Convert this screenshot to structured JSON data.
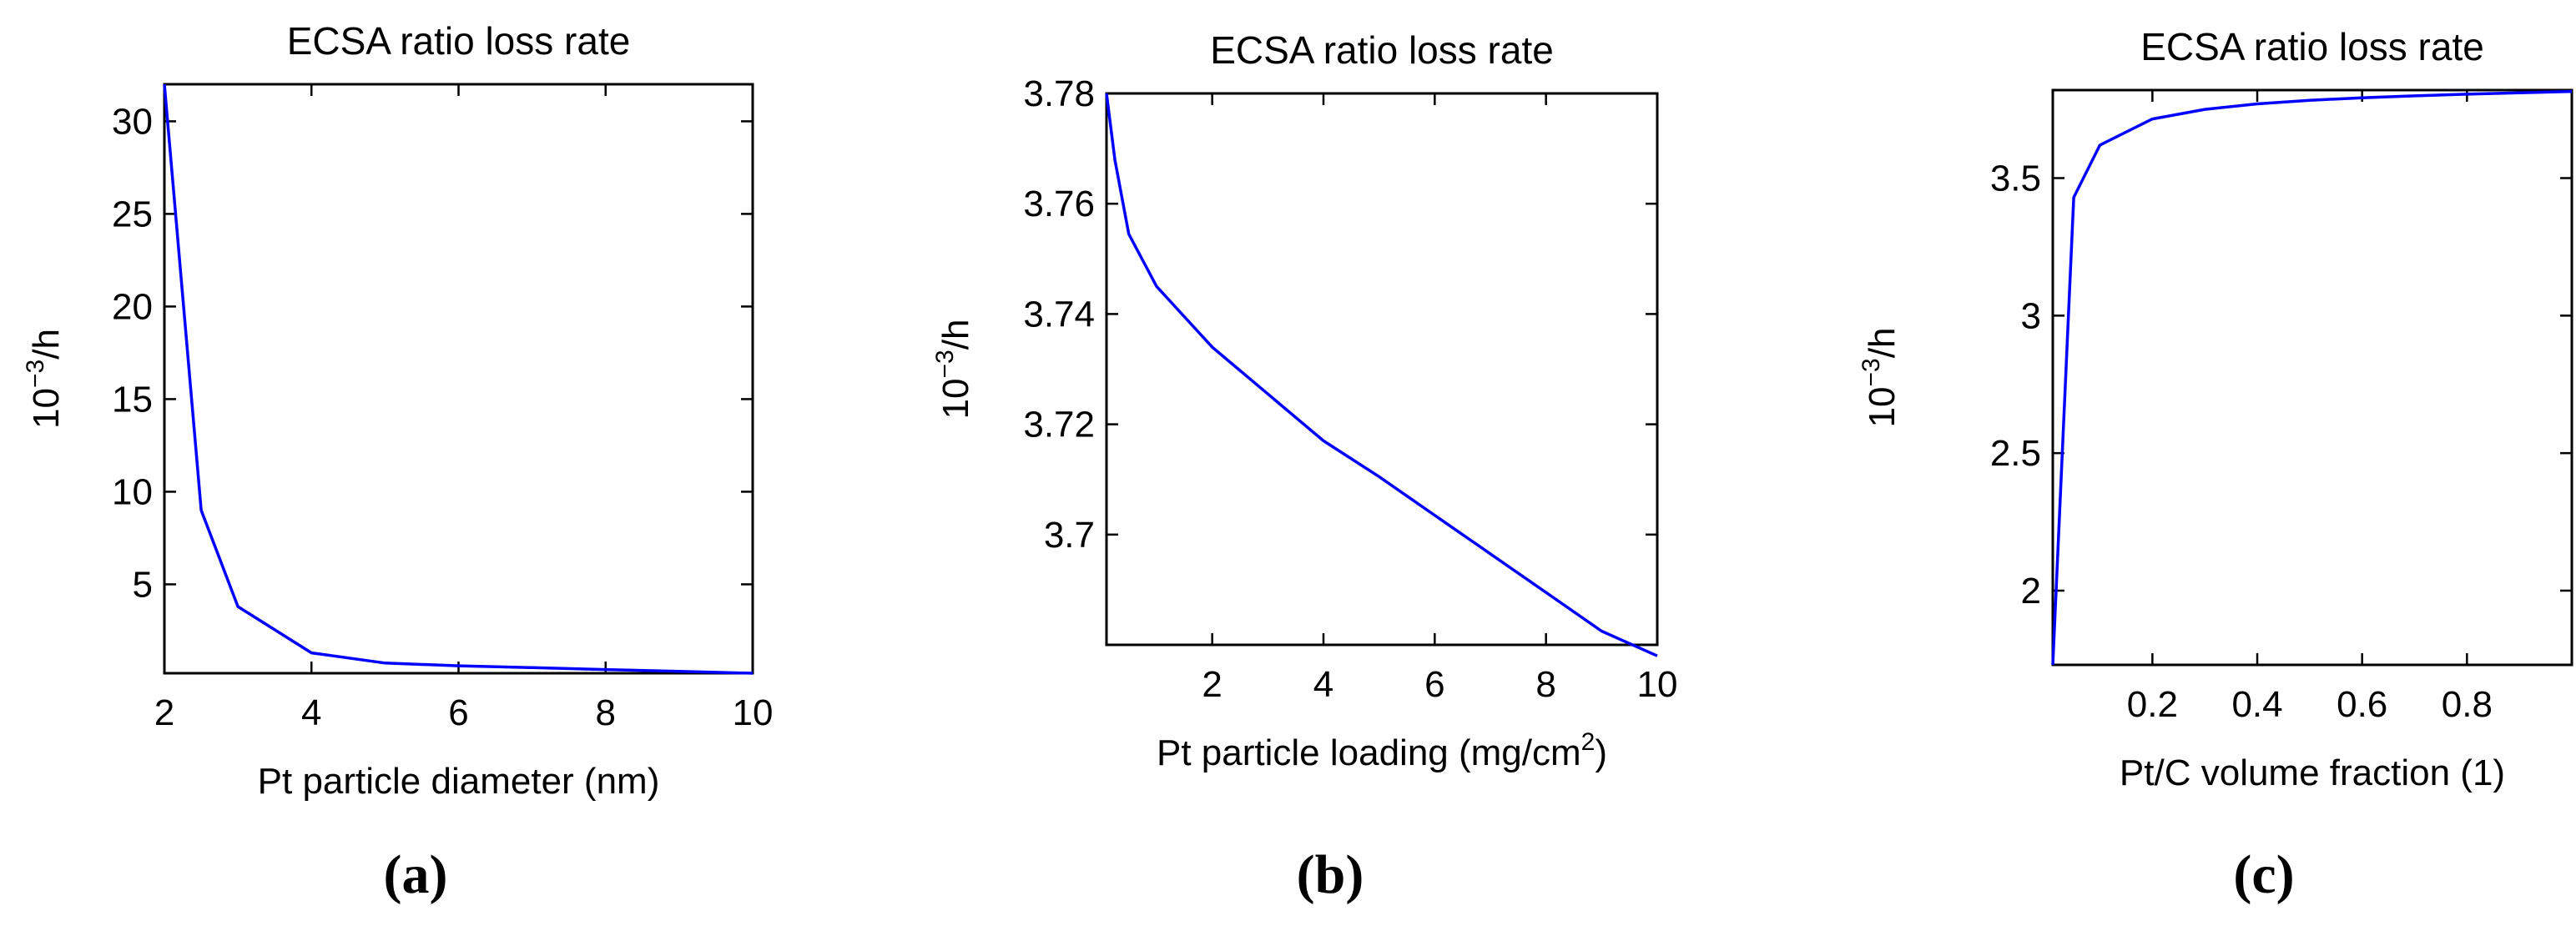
{
  "chart_data": [
    {
      "type": "line",
      "panel": "(a)",
      "title": "ECSA ratio loss rate",
      "xlabel": "Pt particle diameter (nm)",
      "ylabel": {
        "base": "10",
        "exp": "−3",
        "rest": "/h"
      },
      "xlim": [
        2,
        10
      ],
      "ylim": [
        0.2,
        32
      ],
      "xticks": [
        2,
        4,
        6,
        8,
        10
      ],
      "yticks": [
        5,
        10,
        15,
        20,
        25,
        30
      ],
      "series": [
        {
          "name": "ECSA ratio loss rate",
          "color": "#0000ff",
          "x": [
            2,
            2.5,
            3,
            4,
            5,
            6,
            7,
            8,
            9,
            10
          ],
          "y": [
            32,
            9.0,
            3.8,
            1.3,
            0.75,
            0.6,
            0.5,
            0.4,
            0.3,
            0.2
          ]
        }
      ]
    },
    {
      "type": "line",
      "panel": "(b)",
      "title": "ECSA ratio loss rate",
      "xlabel": {
        "text": "Pt particle loading (mg/cm",
        "sup": "2",
        "after": ")"
      },
      "ylabel": {
        "base": "10",
        "exp": "−3",
        "rest": "/h"
      },
      "xlim": [
        0.1,
        10
      ],
      "ylim": [
        3.68,
        3.78
      ],
      "xticks": [
        2,
        4,
        6,
        8,
        10
      ],
      "yticks": [
        3.7,
        3.72,
        3.74,
        3.76,
        3.78
      ],
      "series": [
        {
          "name": "ECSA ratio loss rate",
          "color": "#0000ff",
          "x": [
            0.1,
            0.25,
            0.5,
            1,
            2,
            3,
            4,
            5,
            6,
            7,
            8,
            9,
            10
          ],
          "y": [
            3.78,
            3.768,
            3.7545,
            3.745,
            3.734,
            3.7255,
            3.717,
            3.7105,
            3.7035,
            3.6965,
            3.6895,
            3.6825,
            3.678
          ]
        }
      ]
    },
    {
      "type": "line",
      "panel": "(c)",
      "title": "ECSA ratio loss rate",
      "xlabel": "Pt/C volume fraction (1)",
      "ylabel": {
        "base": "10",
        "exp": "−3",
        "rest": "/h"
      },
      "xlim": [
        0.01,
        1
      ],
      "ylim": [
        1.73,
        3.82
      ],
      "xticks": [
        0.2,
        0.4,
        0.6,
        0.8
      ],
      "yticks": [
        2,
        2.5,
        3,
        3.5
      ],
      "series": [
        {
          "name": "ECSA ratio loss rate",
          "color": "#0000ff",
          "x": [
            0.01,
            0.05,
            0.1,
            0.2,
            0.3,
            0.4,
            0.5,
            0.6,
            0.7,
            0.8,
            0.9,
            1.0
          ],
          "y": [
            1.73,
            3.43,
            3.62,
            3.715,
            3.75,
            3.77,
            3.783,
            3.792,
            3.799,
            3.805,
            3.81,
            3.815
          ]
        }
      ]
    }
  ]
}
